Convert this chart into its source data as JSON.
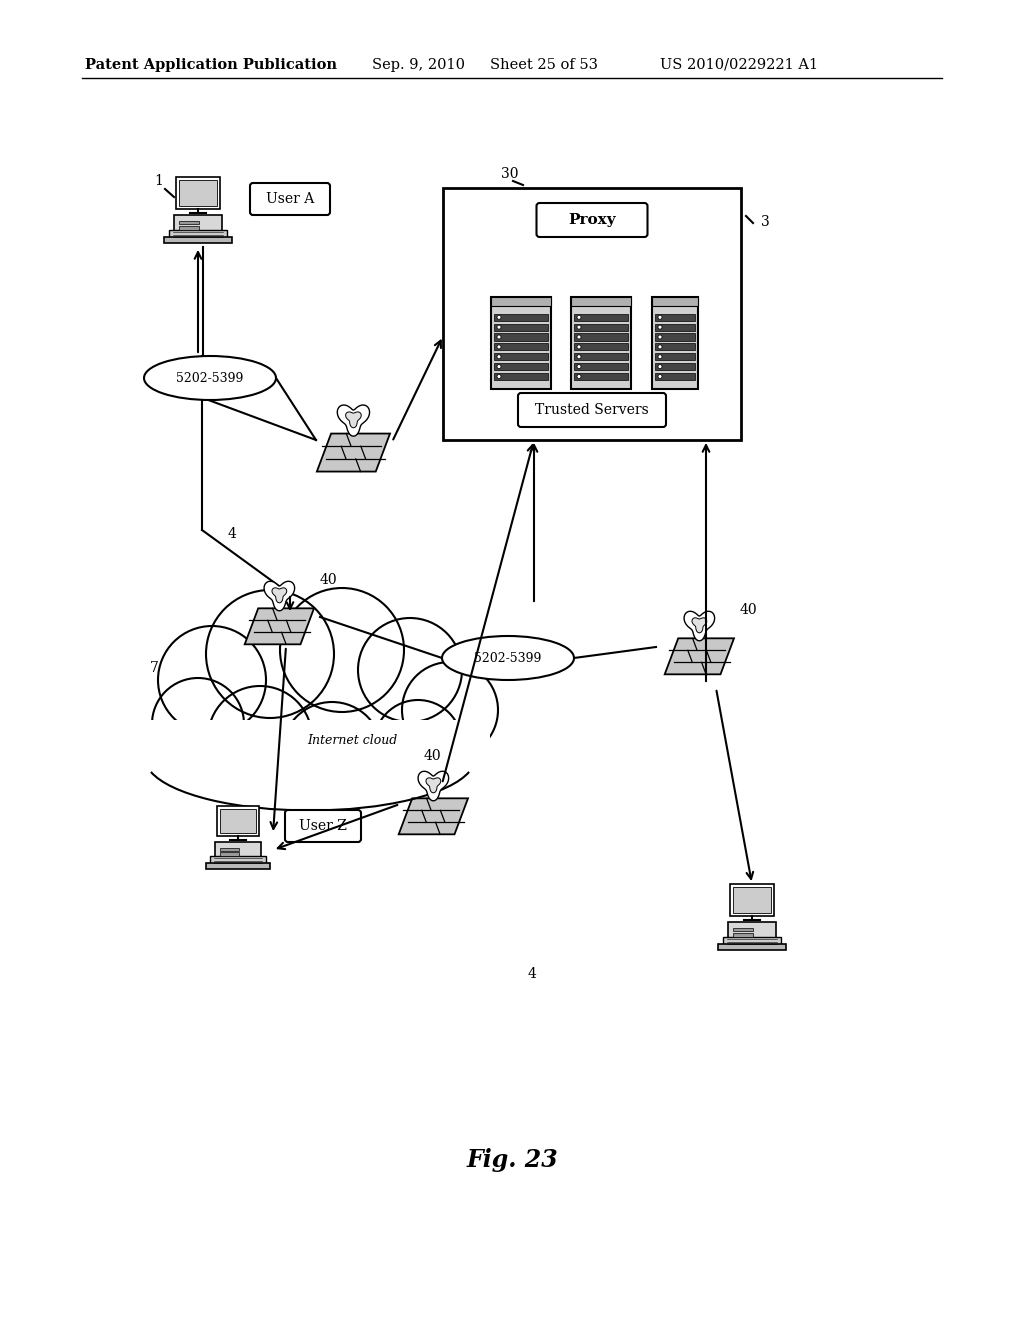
{
  "background": "#ffffff",
  "header_left": "Patent Application Publication",
  "header_date": "Sep. 9, 2010",
  "header_sheet": "Sheet 25 of 53",
  "header_patent": "US 2010/0229221 A1",
  "fig_caption": "Fig. 23",
  "label_user_a": "User A",
  "label_user_z": "User Z",
  "label_proxy": "Proxy",
  "label_trusted": "Trusted Servers",
  "label_internet": "Internet cloud",
  "label_port": "5202-5399",
  "label_1": "1",
  "label_3": "3",
  "label_4a": "4",
  "label_4b": "4",
  "label_7": "7",
  "label_30": "30",
  "label_40a": "40",
  "label_40b": "40",
  "label_40c": "40"
}
